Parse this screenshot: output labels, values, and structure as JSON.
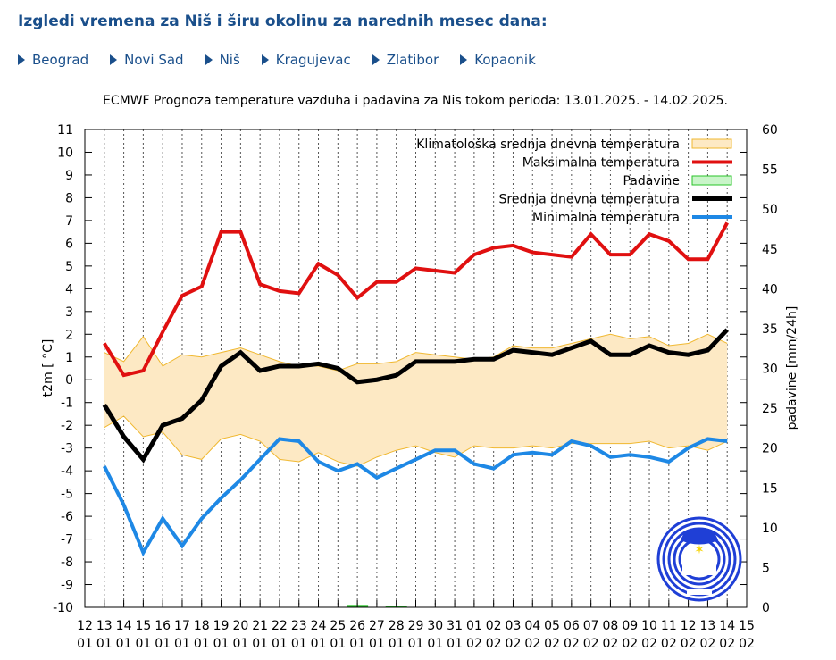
{
  "page": {
    "heading": "Izgledi vremena za Niš i širu okolinu za narednih mesec dana:",
    "nav": [
      {
        "label": "Beograd"
      },
      {
        "label": "Novi Sad"
      },
      {
        "label": "Niš"
      },
      {
        "label": "Kragujevac"
      },
      {
        "label": "Zlatibor"
      },
      {
        "label": "Kopaonik"
      }
    ]
  },
  "colors": {
    "link": "#1a4f8b",
    "max": "#e01010",
    "mean": "#000000",
    "min": "#1e88e5",
    "clim_fill": "#fde9c4",
    "clim_line": "#f0b830",
    "precip": "#29c429",
    "logo": "#1f3fd6"
  },
  "chart_data": {
    "type": "line",
    "title": "ECMWF Prognoza temperature vazduha i padavina za Nis tokom perioda: 13.01.2025. - 14.02.2025.",
    "ylabel": "t2m [ °C]",
    "y2label": "padavine [mm/24h]",
    "ylim": [
      -10,
      11
    ],
    "y2lim": [
      0,
      60
    ],
    "yticks": [
      "11",
      "10",
      "9",
      "8",
      "7",
      "6",
      "5",
      "4",
      "3",
      "2",
      "1",
      "0",
      "-1",
      "-2",
      "-3",
      "-4",
      "-5",
      "-6",
      "-7",
      "-8",
      "-9",
      "-10"
    ],
    "y2ticks": [
      "60",
      "55",
      "50",
      "45",
      "40",
      "35",
      "30",
      "25",
      "20",
      "15",
      "10",
      "5",
      "0"
    ],
    "xticks": [
      [
        "12",
        "01"
      ],
      [
        "13",
        "01"
      ],
      [
        "14",
        "01"
      ],
      [
        "15",
        "01"
      ],
      [
        "16",
        "01"
      ],
      [
        "17",
        "01"
      ],
      [
        "18",
        "01"
      ],
      [
        "19",
        "01"
      ],
      [
        "20",
        "01"
      ],
      [
        "21",
        "01"
      ],
      [
        "22",
        "01"
      ],
      [
        "23",
        "01"
      ],
      [
        "24",
        "01"
      ],
      [
        "25",
        "01"
      ],
      [
        "26",
        "01"
      ],
      [
        "27",
        "01"
      ],
      [
        "28",
        "01"
      ],
      [
        "29",
        "01"
      ],
      [
        "30",
        "01"
      ],
      [
        "31",
        "01"
      ],
      [
        "01",
        "02"
      ],
      [
        "02",
        "02"
      ],
      [
        "03",
        "02"
      ],
      [
        "04",
        "02"
      ],
      [
        "05",
        "02"
      ],
      [
        "06",
        "02"
      ],
      [
        "07",
        "02"
      ],
      [
        "08",
        "02"
      ],
      [
        "09",
        "02"
      ],
      [
        "10",
        "02"
      ],
      [
        "11",
        "02"
      ],
      [
        "12",
        "02"
      ],
      [
        "13",
        "02"
      ],
      [
        "14",
        "02"
      ],
      [
        "15",
        "02"
      ]
    ],
    "x_index": [
      1,
      2,
      3,
      4,
      5,
      6,
      7,
      8,
      9,
      10,
      11,
      12,
      13,
      14,
      15,
      16,
      17,
      18,
      19,
      20,
      21,
      22,
      23,
      24,
      25,
      26,
      27,
      28,
      29,
      30,
      31,
      32,
      33
    ],
    "legend": [
      {
        "key": "clim",
        "label": "Klimatološka srednja dnevna temperatura"
      },
      {
        "key": "max",
        "label": "Maksimalna temperatura"
      },
      {
        "key": "precip",
        "label": "Padavine"
      },
      {
        "key": "mean",
        "label": "Srednja dnevna temperatura"
      },
      {
        "key": "min",
        "label": "Minimalna temperatura"
      }
    ],
    "series": [
      {
        "key": "max",
        "name": "Maksimalna temperatura",
        "values": [
          1.6,
          0.2,
          0.4,
          2.1,
          3.7,
          4.1,
          6.5,
          6.5,
          4.2,
          3.9,
          3.8,
          5.1,
          4.6,
          3.6,
          4.3,
          4.3,
          4.9,
          4.8,
          4.7,
          5.5,
          5.8,
          5.9,
          5.6,
          5.5,
          5.4,
          6.4,
          5.5,
          5.5,
          6.4,
          6.1,
          5.3,
          5.3,
          6.9
        ]
      },
      {
        "key": "mean",
        "name": "Srednja dnevna temperatura",
        "values": [
          -1.1,
          -2.5,
          -3.5,
          -2.0,
          -1.7,
          -0.9,
          0.6,
          1.2,
          0.4,
          0.6,
          0.6,
          0.7,
          0.5,
          -0.1,
          0.0,
          0.2,
          0.8,
          0.8,
          0.8,
          0.9,
          0.9,
          1.3,
          1.2,
          1.1,
          1.4,
          1.7,
          1.1,
          1.1,
          1.5,
          1.2,
          1.1,
          1.3,
          2.2
        ]
      },
      {
        "key": "min",
        "name": "Minimalna temperatura",
        "values": [
          -3.8,
          -5.5,
          -7.6,
          -6.1,
          -7.3,
          -6.1,
          -5.2,
          -4.4,
          -3.5,
          -2.6,
          -2.7,
          -3.6,
          -4.0,
          -3.7,
          -4.3,
          -3.9,
          -3.5,
          -3.1,
          -3.1,
          -3.7,
          -3.9,
          -3.3,
          -3.2,
          -3.3,
          -2.7,
          -2.9,
          -3.4,
          -3.3,
          -3.4,
          -3.6,
          -3.0,
          -2.6,
          -2.7
        ]
      },
      {
        "key": "clim_upper",
        "name": "Klimatološka srednja dnevna temperatura (gornja granica)",
        "values": [
          1.2,
          0.8,
          1.9,
          0.6,
          1.1,
          1.0,
          1.2,
          1.4,
          1.1,
          0.8,
          0.6,
          0.6,
          0.4,
          0.7,
          0.7,
          0.8,
          1.2,
          1.1,
          1.0,
          0.9,
          1.0,
          1.5,
          1.4,
          1.4,
          1.6,
          1.8,
          2.0,
          1.8,
          1.9,
          1.5,
          1.6,
          2.0,
          1.6
        ]
      },
      {
        "key": "clim_lower",
        "name": "Klimatološka srednja dnevna temperatura (donja granica)",
        "values": [
          -2.1,
          -1.6,
          -2.5,
          -2.3,
          -3.3,
          -3.5,
          -2.6,
          -2.4,
          -2.7,
          -3.5,
          -3.6,
          -3.2,
          -3.6,
          -3.8,
          -3.4,
          -3.1,
          -2.9,
          -3.2,
          -3.4,
          -2.9,
          -3.0,
          -3.0,
          -2.9,
          -3.0,
          -2.8,
          -2.8,
          -2.8,
          -2.8,
          -2.7,
          -3.0,
          -2.9,
          -3.1,
          -2.7
        ]
      },
      {
        "key": "precip",
        "name": "Padavine",
        "values": [
          0,
          0,
          0,
          0,
          0,
          0,
          0,
          0,
          0,
          0,
          0,
          0,
          0,
          0.3,
          0,
          0.2,
          0,
          0,
          0,
          0,
          0,
          0,
          0,
          0,
          0,
          0,
          0,
          0,
          0,
          0,
          0,
          0,
          0
        ]
      }
    ]
  }
}
